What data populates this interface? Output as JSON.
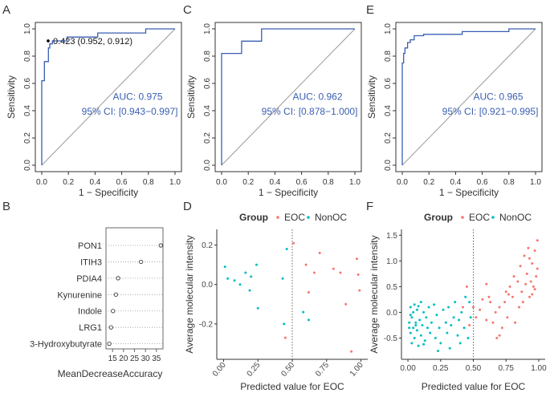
{
  "panel_letters": {
    "A": "A",
    "B": "B",
    "C": "C",
    "D": "D",
    "E": "E",
    "F": "F"
  },
  "colors": {
    "roc": "#3a5fb0",
    "auc_text": "#3a5fb0",
    "eoc": "#f8766d",
    "nonoc": "#00bfc4",
    "axis": "#333333",
    "diag": "#9a9a9a"
  },
  "chart_data": [
    {
      "id": "A",
      "type": "line",
      "title": "",
      "xlabel": "1 − Specificity",
      "ylabel": "Sensitivity",
      "xlim": [
        0,
        1
      ],
      "ylim": [
        0,
        1
      ],
      "xticks": [
        "0.0",
        "0.2",
        "0.4",
        "0.6",
        "0.8",
        "1.0"
      ],
      "yticks": [
        "0.0",
        "0.2",
        "0.4",
        "0.6",
        "0.8",
        "1.0"
      ],
      "roc": [
        [
          0,
          0
        ],
        [
          0,
          0.62
        ],
        [
          0.02,
          0.62
        ],
        [
          0.02,
          0.76
        ],
        [
          0.05,
          0.76
        ],
        [
          0.05,
          0.86
        ],
        [
          0.06,
          0.86
        ],
        [
          0.06,
          0.89
        ],
        [
          0.08,
          0.89
        ],
        [
          0.08,
          0.912
        ],
        [
          0.19,
          0.912
        ],
        [
          0.19,
          0.94
        ],
        [
          0.42,
          0.94
        ],
        [
          0.42,
          0.97
        ],
        [
          0.78,
          0.97
        ],
        [
          0.78,
          1.0
        ],
        [
          1,
          1
        ]
      ],
      "threshold_point": [
        0.048,
        0.912
      ],
      "threshold_label": "0.423 (0.952, 0.912)",
      "auc_label": "AUC: 0.975",
      "ci_label": "95% CI: [0.943−0.997]"
    },
    {
      "id": "C",
      "type": "line",
      "title": "",
      "xlabel": "1 − Specificity",
      "ylabel": "Sensitivity",
      "xlim": [
        0,
        1
      ],
      "ylim": [
        0,
        1
      ],
      "xticks": [
        "0.0",
        "0.2",
        "0.4",
        "0.6",
        "0.8",
        "1.0"
      ],
      "yticks": [
        "0.0",
        "0.2",
        "0.4",
        "0.6",
        "0.8",
        "1.0"
      ],
      "roc": [
        [
          0,
          0
        ],
        [
          0,
          0.82
        ],
        [
          0.15,
          0.82
        ],
        [
          0.15,
          0.91
        ],
        [
          0.3,
          0.91
        ],
        [
          0.3,
          1.0
        ],
        [
          1,
          1
        ]
      ],
      "auc_label": "AUC: 0.962",
      "ci_label": "95% CI: [0.878−1.000]"
    },
    {
      "id": "E",
      "type": "line",
      "title": "",
      "xlabel": "1 − Specificity",
      "ylabel": "Sensitivity",
      "xlim": [
        0,
        1
      ],
      "ylim": [
        0,
        1
      ],
      "xticks": [
        "0.0",
        "0.2",
        "0.4",
        "0.6",
        "0.8",
        "1.0"
      ],
      "yticks": [
        "0.0",
        "0.2",
        "0.4",
        "0.6",
        "0.8",
        "1.0"
      ],
      "roc": [
        [
          0,
          0
        ],
        [
          0,
          0.75
        ],
        [
          0.01,
          0.75
        ],
        [
          0.01,
          0.82
        ],
        [
          0.02,
          0.82
        ],
        [
          0.02,
          0.86
        ],
        [
          0.04,
          0.86
        ],
        [
          0.04,
          0.9
        ],
        [
          0.06,
          0.9
        ],
        [
          0.06,
          0.92
        ],
        [
          0.09,
          0.92
        ],
        [
          0.09,
          0.95
        ],
        [
          0.16,
          0.95
        ],
        [
          0.16,
          0.96
        ],
        [
          0.45,
          0.96
        ],
        [
          0.45,
          0.98
        ],
        [
          0.8,
          0.98
        ],
        [
          0.8,
          1.0
        ],
        [
          1,
          1
        ]
      ],
      "auc_label": "AUC: 0.965",
      "ci_label": "95% CI: [0.921−0.995]"
    },
    {
      "id": "B",
      "type": "scatter",
      "title": "",
      "xlabel": "MeanDecreaseAccuracy",
      "xlim": [
        12,
        38
      ],
      "xticks": [
        15,
        20,
        25,
        30,
        35
      ],
      "categories": [
        "PON1",
        "ITIH3",
        "PDIA4",
        "Kynurenine",
        "Indole",
        "LRG1",
        "3-Hydroxybutyrate"
      ],
      "values": [
        37,
        28,
        17.5,
        16.5,
        15.2,
        14.3,
        13.5
      ]
    },
    {
      "id": "D",
      "type": "scatter",
      "title": "",
      "xlabel": "Predicted value for EOC",
      "ylabel": "Average molecular intensity",
      "xlim": [
        0,
        1
      ],
      "ylim": [
        -0.35,
        0.25
      ],
      "xticks": [
        "0.00",
        "0.25",
        "0.50",
        "0.75",
        "1.00"
      ],
      "yticks": [
        "-0.2",
        "0.0",
        "0.2"
      ],
      "threshold_x": 0.5,
      "legend_title": "Group",
      "legend_labels": [
        "EOC",
        "NonOC"
      ],
      "legend_position": "top",
      "series": [
        {
          "name": "EOC",
          "points": [
            [
              0.51,
              0.21
            ],
            [
              0.6,
              0.1
            ],
            [
              0.66,
              0.06
            ],
            [
              0.7,
              0.16
            ],
            [
              0.8,
              0.08
            ],
            [
              0.85,
              0.06
            ],
            [
              0.89,
              -0.1
            ],
            [
              0.62,
              -0.04
            ],
            [
              0.97,
              0.13
            ],
            [
              0.98,
              0.05
            ],
            [
              0.99,
              -0.03
            ],
            [
              0.93,
              -0.34
            ],
            [
              0.45,
              -0.27
            ]
          ]
        },
        {
          "name": "NonOC",
          "points": [
            [
              0.01,
              0.09
            ],
            [
              0.03,
              0.03
            ],
            [
              0.08,
              0.02
            ],
            [
              0.12,
              0.0
            ],
            [
              0.16,
              0.06
            ],
            [
              0.2,
              0.04
            ],
            [
              0.24,
              0.1
            ],
            [
              0.25,
              -0.12
            ],
            [
              0.19,
              -0.03
            ],
            [
              0.43,
              0.03
            ],
            [
              0.46,
              0.18
            ],
            [
              0.44,
              -0.2
            ],
            [
              0.58,
              -0.14
            ],
            [
              0.62,
              -0.18
            ]
          ]
        }
      ]
    },
    {
      "id": "F",
      "type": "scatter",
      "title": "",
      "xlabel": "Predicted value for EOC",
      "ylabel": "Average molecular intensity",
      "xlim": [
        0,
        1
      ],
      "ylim": [
        -0.8,
        1.5
      ],
      "xticks": [
        "0.00",
        "0.25",
        "0.50",
        "0.75",
        "1.00"
      ],
      "yticks": [
        "-0.5",
        "0.0",
        "0.5",
        "1.0",
        "1.5"
      ],
      "threshold_x": 0.5,
      "legend_title": "Group",
      "legend_labels": [
        "EOC",
        "NonOC"
      ],
      "legend_position": "top",
      "series": [
        {
          "name": "EOC",
          "points": [
            [
              0.5,
              0.1
            ],
            [
              0.52,
              -0.1
            ],
            [
              0.55,
              0.05
            ],
            [
              0.57,
              0.25
            ],
            [
              0.6,
              -0.15
            ],
            [
              0.62,
              0.3
            ],
            [
              0.65,
              -0.2
            ],
            [
              0.67,
              0.0
            ],
            [
              0.68,
              -0.5
            ],
            [
              0.7,
              0.1
            ],
            [
              0.72,
              -0.3
            ],
            [
              0.74,
              0.2
            ],
            [
              0.75,
              0.4
            ],
            [
              0.76,
              -0.1
            ],
            [
              0.78,
              0.5
            ],
            [
              0.8,
              0.3
            ],
            [
              0.81,
              0.7
            ],
            [
              0.82,
              -0.2
            ],
            [
              0.84,
              0.6
            ],
            [
              0.85,
              0.1
            ],
            [
              0.86,
              0.9
            ],
            [
              0.87,
              0.4
            ],
            [
              0.88,
              0.2
            ],
            [
              0.89,
              1.1
            ],
            [
              0.9,
              0.55
            ],
            [
              0.91,
              0.75
            ],
            [
              0.92,
              1.25
            ],
            [
              0.93,
              0.3
            ],
            [
              0.94,
              0.6
            ],
            [
              0.95,
              0.95
            ],
            [
              0.96,
              0.5
            ],
            [
              0.97,
              1.2
            ],
            [
              0.98,
              0.7
            ],
            [
              0.99,
              1.4
            ],
            [
              0.97,
              0.45
            ],
            [
              0.95,
              0.35
            ],
            [
              0.93,
              1.05
            ],
            [
              0.99,
              0.85
            ],
            [
              0.6,
              0.55
            ],
            [
              0.45,
              0.5
            ],
            [
              0.42,
              0.1
            ],
            [
              0.47,
              -0.25
            ],
            [
              0.63,
              0.2
            ],
            [
              0.7,
              -0.45
            ],
            [
              0.77,
              0.35
            ]
          ]
        },
        {
          "name": "NonOC",
          "points": [
            [
              0.01,
              -0.2
            ],
            [
              0.02,
              0.1
            ],
            [
              0.02,
              -0.4
            ],
            [
              0.03,
              -0.1
            ],
            [
              0.03,
              -0.6
            ],
            [
              0.04,
              0.0
            ],
            [
              0.04,
              -0.3
            ],
            [
              0.05,
              0.15
            ],
            [
              0.05,
              -0.5
            ],
            [
              0.06,
              -0.2
            ],
            [
              0.07,
              0.05
            ],
            [
              0.07,
              -0.35
            ],
            [
              0.08,
              -0.65
            ],
            [
              0.09,
              -0.15
            ],
            [
              0.1,
              0.2
            ],
            [
              0.1,
              -0.45
            ],
            [
              0.11,
              -0.25
            ],
            [
              0.12,
              0.0
            ],
            [
              0.13,
              -0.55
            ],
            [
              0.14,
              -0.1
            ],
            [
              0.15,
              -0.3
            ],
            [
              0.16,
              0.1
            ],
            [
              0.17,
              -0.4
            ],
            [
              0.18,
              -0.2
            ],
            [
              0.2,
              0.15
            ],
            [
              0.21,
              -0.5
            ],
            [
              0.22,
              -0.05
            ],
            [
              0.24,
              -0.3
            ],
            [
              0.25,
              -0.6
            ],
            [
              0.27,
              0.05
            ],
            [
              0.29,
              -0.2
            ],
            [
              0.3,
              -0.4
            ],
            [
              0.31,
              0.1
            ],
            [
              0.33,
              -0.25
            ],
            [
              0.35,
              -0.1
            ],
            [
              0.36,
              0.2
            ],
            [
              0.38,
              -0.45
            ],
            [
              0.39,
              -0.15
            ],
            [
              0.41,
              0.0
            ],
            [
              0.43,
              -0.3
            ],
            [
              0.44,
              0.3
            ],
            [
              0.46,
              -0.5
            ],
            [
              0.47,
              0.2
            ],
            [
              0.48,
              -0.1
            ],
            [
              0.4,
              -0.6
            ],
            [
              0.32,
              -0.7
            ],
            [
              0.23,
              -0.75
            ],
            [
              0.01,
              -0.3
            ],
            [
              0.02,
              -0.05
            ],
            [
              0.06,
              -0.25
            ],
            [
              0.08,
              0.12
            ],
            [
              0.12,
              -0.62
            ]
          ]
        }
      ]
    }
  ]
}
